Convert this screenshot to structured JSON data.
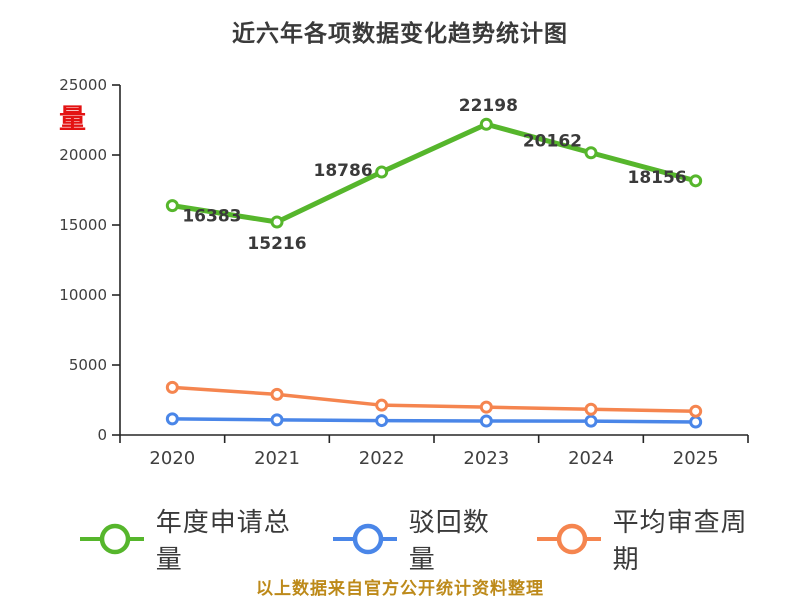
{
  "chart_data": {
    "type": "line",
    "title": "近六年各项数据变化趋势统计图",
    "ylabel": "量",
    "xlabel": "",
    "caption": "以上数据来自官方公开统计资料整理",
    "categories": [
      "2020",
      "2021",
      "2022",
      "2023",
      "2024",
      "2025"
    ],
    "ylim": [
      0,
      25000
    ],
    "ytick_step": 5000,
    "ytick_labels": [
      "0",
      "5000",
      "10000",
      "15000",
      "20000",
      "25000"
    ],
    "grid": false,
    "legend_position": "bottom",
    "series": [
      {
        "name": "年度申请总量",
        "color": "#56b62c",
        "values": [
          16383,
          15216,
          18786,
          22198,
          20162,
          18156
        ],
        "data_labels": [
          16383,
          15216,
          18786,
          22198,
          20162,
          18156
        ]
      },
      {
        "name": "驳回数量",
        "color": "#4a86e8",
        "values": [
          1150,
          1080,
          1030,
          1000,
          990,
          930
        ],
        "data_labels": null
      },
      {
        "name": "平均审查周期",
        "color": "#f5854f",
        "values": [
          3400,
          2900,
          2130,
          1990,
          1840,
          1700
        ],
        "data_labels": null
      }
    ],
    "colors": {
      "title_text": "#3a3a3a",
      "axis": "#262626",
      "tick_text": "#3f3f3f",
      "ylabel_red": "#e31212",
      "caption_gold": "#bd8a1a",
      "data_label": "#3a3a3a"
    }
  }
}
